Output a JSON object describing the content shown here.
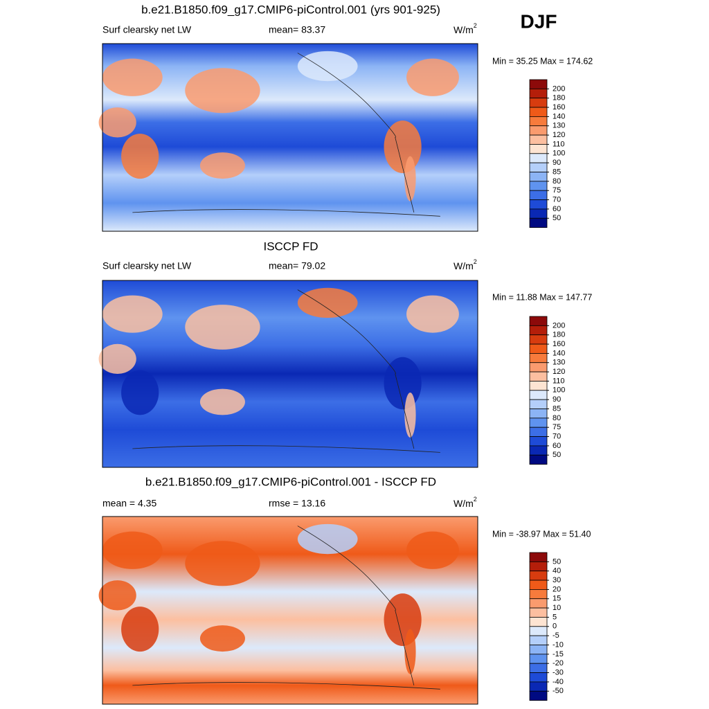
{
  "label": "DJF",
  "panels": [
    {
      "title": "b.e21.B1850.f09_g17.CMIP6-piControl.001 (yrs 901-925)",
      "left": "Surf clearsky net LW",
      "center": "mean=  83.37",
      "right": "W/m",
      "right_sup": "2",
      "minmax": "Min =  35.25 Max = 174.62",
      "colorbar": {
        "levels": [
          200,
          180,
          160,
          140,
          130,
          120,
          110,
          100,
          90,
          85,
          80,
          75,
          70,
          60,
          50
        ],
        "colors": [
          "#8c0a0a",
          "#b41e0a",
          "#d73c0f",
          "#ef5a19",
          "#f77b3c",
          "#fa9b6e",
          "#fcbfa0",
          "#fde4d2",
          "#dce9fb",
          "#b4cffa",
          "#8cb4f5",
          "#5f93ef",
          "#3c6ee6",
          "#1e4bd7",
          "#0a28b4",
          "#000a82"
        ]
      }
    },
    {
      "title": "ISCCP FD",
      "left": "Surf clearsky net LW",
      "center": "mean=  79.02",
      "right": "W/m",
      "right_sup": "2",
      "minmax": "Min =  11.88 Max = 147.77",
      "colorbar": {
        "levels": [
          200,
          180,
          160,
          140,
          130,
          120,
          110,
          100,
          90,
          85,
          80,
          75,
          70,
          60,
          50
        ],
        "colors": [
          "#8c0a0a",
          "#b41e0a",
          "#d73c0f",
          "#ef5a19",
          "#f77b3c",
          "#fa9b6e",
          "#fcbfa0",
          "#fde4d2",
          "#dce9fb",
          "#b4cffa",
          "#8cb4f5",
          "#5f93ef",
          "#3c6ee6",
          "#1e4bd7",
          "#0a28b4",
          "#000a82"
        ]
      }
    },
    {
      "title": "b.e21.B1850.f09_g17.CMIP6-piControl.001 - ISCCP FD",
      "left": "mean =   4.35",
      "center": "rmse =  13.16",
      "right": "W/m",
      "right_sup": "2",
      "minmax": "Min = -38.97 Max =  51.40",
      "colorbar": {
        "levels": [
          50,
          40,
          30,
          20,
          15,
          10,
          5,
          0,
          -5,
          -10,
          -15,
          -20,
          -30,
          -40,
          -50
        ],
        "colors": [
          "#8c0a0a",
          "#b41e0a",
          "#d73c0f",
          "#ef5a19",
          "#f77b3c",
          "#fa9b6e",
          "#fcbfa0",
          "#fde4d2",
          "#dce9fb",
          "#b4cffa",
          "#8cb4f5",
          "#5f93ef",
          "#3c6ee6",
          "#1e4bd7",
          "#0a28b4",
          "#000a82"
        ]
      }
    }
  ]
}
